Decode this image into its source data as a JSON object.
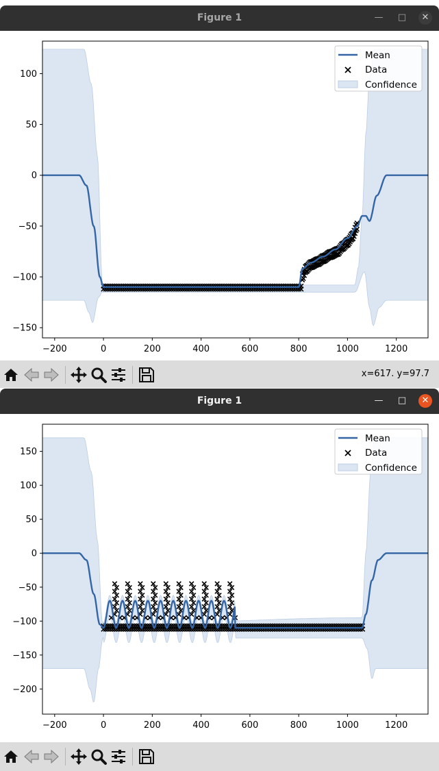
{
  "windows": [
    {
      "title": "Figure 1",
      "coords": "x=617. y=97.7",
      "legend": {
        "mean": "Mean",
        "data": "Data",
        "confidence": "Confidence"
      },
      "chart_data": {
        "type": "line",
        "xlim": [
          -250,
          1330
        ],
        "ylim": [
          -160,
          132
        ],
        "xticks": [
          -200,
          0,
          200,
          400,
          600,
          800,
          1000,
          1200
        ],
        "yticks": [
          -150,
          -100,
          -50,
          0,
          50,
          100
        ],
        "mean": [
          [
            -250,
            0
          ],
          [
            -100,
            0
          ],
          [
            -70,
            -10
          ],
          [
            -40,
            -50
          ],
          [
            -15,
            -100
          ],
          [
            0,
            -110
          ],
          [
            800,
            -110
          ],
          [
            815,
            -92
          ],
          [
            850,
            -86
          ],
          [
            900,
            -80
          ],
          [
            950,
            -73
          ],
          [
            1000,
            -62
          ],
          [
            1040,
            -50
          ],
          [
            1060,
            -40
          ],
          [
            1075,
            -40
          ],
          [
            1090,
            -45
          ],
          [
            1120,
            -20
          ],
          [
            1160,
            0
          ],
          [
            1330,
            0
          ]
        ],
        "upper": [
          [
            -250,
            124
          ],
          [
            -80,
            124
          ],
          [
            -50,
            90
          ],
          [
            -25,
            20
          ],
          [
            -5,
            -105
          ],
          [
            0,
            -108
          ],
          [
            1030,
            -108
          ],
          [
            1045,
            -90
          ],
          [
            1060,
            -40
          ],
          [
            1075,
            40
          ],
          [
            1090,
            95
          ],
          [
            1110,
            124
          ],
          [
            1330,
            124
          ]
        ],
        "lower": [
          [
            -250,
            -123
          ],
          [
            -80,
            -123
          ],
          [
            -60,
            -135
          ],
          [
            -45,
            -145
          ],
          [
            -20,
            -120
          ],
          [
            -5,
            -115
          ],
          [
            1030,
            -115
          ],
          [
            1070,
            -95
          ],
          [
            1090,
            -130
          ],
          [
            1105,
            -148
          ],
          [
            1130,
            -130
          ],
          [
            1160,
            -123
          ],
          [
            1330,
            -123
          ]
        ],
        "data": {
          "flat": {
            "x_from": 0,
            "x_to": 815,
            "y": [
              -109,
              -112
            ]
          },
          "ramp": [
            [
              815,
              -100
            ],
            [
              830,
              -92
            ],
            [
              850,
              -88
            ],
            [
              880,
              -85
            ],
            [
              900,
              -82
            ],
            [
              930,
              -78
            ],
            [
              960,
              -75
            ],
            [
              980,
              -70
            ],
            [
              1000,
              -66
            ],
            [
              1020,
              -60
            ],
            [
              1040,
              -50
            ]
          ]
        }
      }
    },
    {
      "title": "Figure 1",
      "coords": "",
      "legend": {
        "mean": "Mean",
        "data": "Data",
        "confidence": "Confidence"
      },
      "chart_data": {
        "type": "line",
        "xlim": [
          -250,
          1330
        ],
        "ylim": [
          -237,
          190
        ],
        "xticks": [
          -200,
          0,
          200,
          400,
          600,
          800,
          1000,
          1200
        ],
        "yticks": [
          -200,
          -150,
          -100,
          -50,
          0,
          50,
          100,
          150
        ],
        "mean": [
          [
            -250,
            0
          ],
          [
            -100,
            0
          ],
          [
            -70,
            -10
          ],
          [
            -40,
            -60
          ],
          [
            -15,
            -105
          ],
          [
            0,
            -110
          ],
          [
            550,
            -110
          ],
          [
            1060,
            -110
          ],
          [
            1075,
            -90
          ],
          [
            1100,
            -40
          ],
          [
            1125,
            -10
          ],
          [
            1160,
            0
          ],
          [
            1330,
            0
          ]
        ],
        "upper": [
          [
            -250,
            170
          ],
          [
            -80,
            170
          ],
          [
            -50,
            120
          ],
          [
            -25,
            20
          ],
          [
            -5,
            -100
          ],
          [
            0,
            -105
          ],
          [
            1060,
            -95
          ],
          [
            1075,
            0
          ],
          [
            1095,
            120
          ],
          [
            1110,
            170
          ],
          [
            1330,
            170
          ]
        ],
        "lower": [
          [
            -250,
            -170
          ],
          [
            -80,
            -170
          ],
          [
            -55,
            -200
          ],
          [
            -40,
            -220
          ],
          [
            -20,
            -170
          ],
          [
            -5,
            -130
          ],
          [
            0,
            -120
          ],
          [
            550,
            -125
          ],
          [
            1060,
            -125
          ],
          [
            1080,
            -140
          ],
          [
            1100,
            -185
          ],
          [
            1115,
            -170
          ],
          [
            1330,
            -170
          ]
        ],
        "osc": {
          "x_from": 0,
          "x_to": 540,
          "period": 52,
          "base": -110,
          "peak": -70
        },
        "data": {
          "flat": {
            "x_from": 0,
            "x_to": 1065,
            "y": [
              -107,
              -112
            ]
          },
          "peaks_x": [
            50,
            103,
            155,
            208,
            260,
            313,
            365,
            417,
            470,
            522
          ],
          "peak_y": [
            -45,
            -90
          ],
          "mid_y": [
            -110
          ]
        }
      }
    }
  ]
}
